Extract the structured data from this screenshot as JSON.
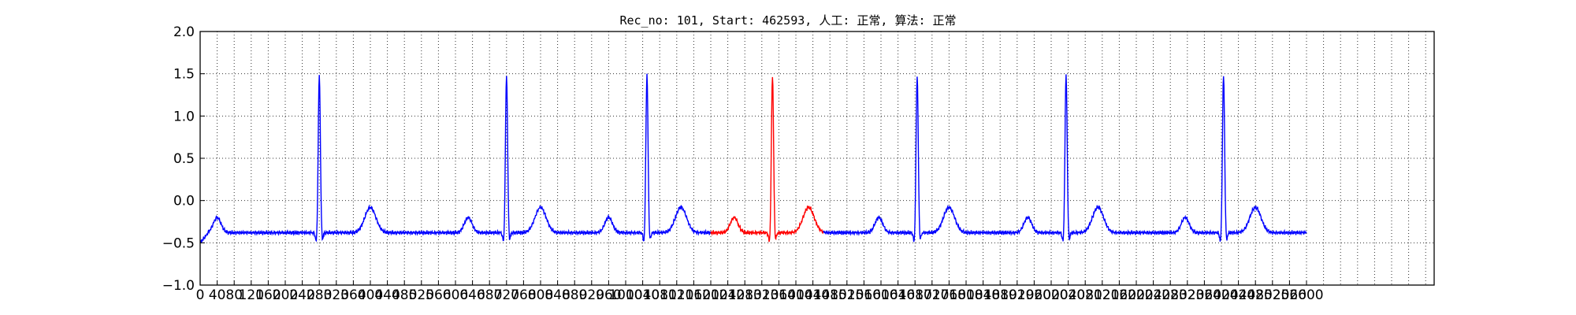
{
  "chart_data": {
    "type": "line",
    "title": "Rec_no: 101, Start: 462593, 人工: 正常, 算法: 正常",
    "xlabel": "",
    "ylabel": "",
    "xlim": [
      0,
      2900
    ],
    "ylim": [
      -1.0,
      2.0
    ],
    "grid": true,
    "y_ticks": [
      -1.0,
      -0.5,
      0.0,
      0.5,
      1.0,
      1.5,
      2.0
    ],
    "y_tick_labels": [
      "−1.0",
      "−0.5",
      "0.0",
      "0.5",
      "1.0",
      "1.5",
      "2.0"
    ],
    "x_ticks": [
      0,
      40,
      80,
      120,
      160,
      200,
      240,
      280,
      320,
      360,
      400,
      440,
      480,
      520,
      560,
      600,
      640,
      680,
      720,
      760,
      800,
      840,
      880,
      920,
      960,
      1000,
      1040,
      1080,
      1120,
      1160,
      1200,
      1240,
      1280,
      1320,
      1360,
      1400,
      1440,
      1480,
      1520,
      1560,
      1600,
      1640,
      1680,
      1720,
      1760,
      1800,
      1840,
      1880,
      1920,
      1960,
      2000,
      2040,
      2080,
      2120,
      2160,
      2200,
      2240,
      2280,
      2320,
      2360,
      2400,
      2440,
      2480,
      2520,
      2560,
      2600
    ],
    "x_grid_step": 40,
    "series": [
      {
        "color": "#0000ff",
        "segment": "before",
        "x_range": [
          0,
          1200
        ],
        "beats": [
          {
            "p": 40,
            "r": 280,
            "t": 400
          },
          {
            "p": 630,
            "r": 720,
            "t": 800
          },
          {
            "p": 960,
            "r": 1050,
            "t": 1130
          }
        ]
      },
      {
        "color": "#ff0000",
        "segment": "highlight",
        "x_range": [
          1200,
          1465
        ],
        "beats": [
          {
            "p": 1255,
            "r": 1345,
            "t": 1430
          }
        ]
      },
      {
        "color": "#0000ff",
        "segment": "after",
        "x_range": [
          1465,
          2600
        ],
        "beats": [
          {
            "p": 1595,
            "r": 1685,
            "t": 1760
          },
          {
            "p": 1945,
            "r": 2035,
            "t": 2110
          },
          {
            "p": 2315,
            "r": 2405,
            "t": 2480
          }
        ]
      }
    ],
    "baseline": -0.38,
    "r_peak": 1.5,
    "t_peak": -0.08,
    "p_peak": -0.2
  }
}
